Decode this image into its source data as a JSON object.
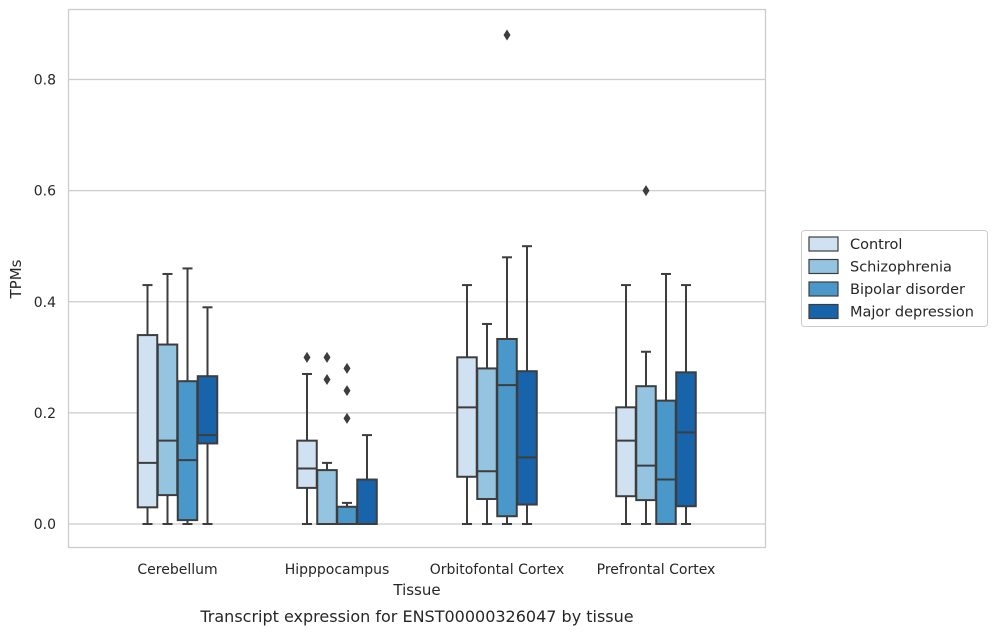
{
  "caption": "Transcript expression for ENST00000326047 by tissue",
  "chart_data": {
    "type": "box",
    "xlabel": "Tissue",
    "ylabel": "TPMs",
    "ylim": [
      -0.042,
      0.93
    ],
    "yticks": [
      "0.0",
      "0.2",
      "0.4",
      "0.6",
      "0.8"
    ],
    "ytick_values": [
      0.0,
      0.2,
      0.4,
      0.6,
      0.8
    ],
    "grid": "horizontal",
    "legend_placement": "right",
    "categories": [
      "Cerebellum",
      "Hipppocampus",
      "Orbitofontal Cortex",
      "Prefrontal Cortex"
    ],
    "series": [
      {
        "name": "Control",
        "color": "#d0e1f2",
        "boxes": [
          {
            "whislo": 0.0,
            "q1": 0.03,
            "med": 0.11,
            "q3": 0.34,
            "whishi": 0.43,
            "fliers": []
          },
          {
            "whislo": 0.0,
            "q1": 0.065,
            "med": 0.1,
            "q3": 0.15,
            "whishi": 0.27,
            "fliers": [
              0.3
            ]
          },
          {
            "whislo": 0.0,
            "q1": 0.085,
            "med": 0.21,
            "q3": 0.3,
            "whishi": 0.43,
            "fliers": []
          },
          {
            "whislo": 0.0,
            "q1": 0.05,
            "med": 0.15,
            "q3": 0.21,
            "whishi": 0.43,
            "fliers": []
          }
        ]
      },
      {
        "name": "Schizophrenia",
        "color": "#94c4df",
        "boxes": [
          {
            "whislo": 0.0,
            "q1": 0.052,
            "med": 0.15,
            "q3": 0.323,
            "whishi": 0.45,
            "fliers": []
          },
          {
            "whislo": 0.0,
            "q1": 0.0,
            "med": 0.0,
            "q3": 0.097,
            "whishi": 0.11,
            "fliers": [
              0.26,
              0.3
            ]
          },
          {
            "whislo": 0.0,
            "q1": 0.045,
            "med": 0.095,
            "q3": 0.28,
            "whishi": 0.36,
            "fliers": []
          },
          {
            "whislo": 0.0,
            "q1": 0.043,
            "med": 0.105,
            "q3": 0.248,
            "whishi": 0.31,
            "fliers": [
              0.6
            ]
          }
        ]
      },
      {
        "name": "Bipolar disorder",
        "color": "#4a98c9",
        "boxes": [
          {
            "whislo": 0.0,
            "q1": 0.007,
            "med": 0.115,
            "q3": 0.257,
            "whishi": 0.46,
            "fliers": []
          },
          {
            "whislo": 0.0,
            "q1": 0.0,
            "med": 0.0,
            "q3": 0.031,
            "whishi": 0.038,
            "fliers": [
              0.19,
              0.24,
              0.28
            ]
          },
          {
            "whislo": 0.0,
            "q1": 0.014,
            "med": 0.25,
            "q3": 0.333,
            "whishi": 0.48,
            "fliers": [
              0.88
            ]
          },
          {
            "whislo": 0.0,
            "q1": 0.0,
            "med": 0.08,
            "q3": 0.222,
            "whishi": 0.45,
            "fliers": []
          }
        ]
      },
      {
        "name": "Major depression",
        "color": "#1764ab",
        "boxes": [
          {
            "whislo": 0.0,
            "q1": 0.145,
            "med": 0.16,
            "q3": 0.266,
            "whishi": 0.39,
            "fliers": []
          },
          {
            "whislo": 0.0,
            "q1": 0.0,
            "med": 0.0,
            "q3": 0.08,
            "whishi": 0.16,
            "fliers": []
          },
          {
            "whislo": 0.0,
            "q1": 0.035,
            "med": 0.12,
            "q3": 0.275,
            "whishi": 0.5,
            "fliers": []
          },
          {
            "whislo": 0.0,
            "q1": 0.032,
            "med": 0.165,
            "q3": 0.273,
            "whishi": 0.43,
            "fliers": []
          }
        ]
      }
    ]
  }
}
